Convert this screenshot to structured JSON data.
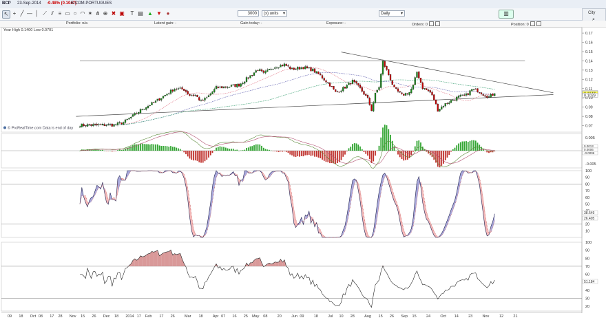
{
  "header": {
    "ticker": "BCP",
    "date": "23-Sep-2014",
    "change": "-0.48% (0.1047)",
    "name": "B.COM.PORTUGUES"
  },
  "toolbar": {
    "quantity": "3000",
    "units_select": "(x) units",
    "period_select": "Daily",
    "side_label": "City"
  },
  "positionbar": {
    "portfolio": "Portfolio: n/a",
    "latent_gain": "Latent gain: -",
    "gain_today": "Gain today: -",
    "exposure": "Exposure: -",
    "orders": "Orders: 0",
    "position": "Position: 0"
  },
  "colors": {
    "up": "#1c8a1c",
    "down": "#c40000",
    "macd_pos": "#31a531",
    "macd_neg": "#c0342f",
    "stoch_fill_up": "#8c8cd0",
    "stoch_fill_down": "#f0a0a0",
    "price_marker": "#ffff40"
  },
  "chart_data": [
    {
      "type": "candlestick",
      "id": "price",
      "annotation": "Year High 0.1400 Low 0.0701",
      "watermark": "© ProRealTime.com  Data is end of day",
      "ylim": [
        0.063,
        0.176
      ],
      "yticks": [
        0.07,
        0.08,
        0.09,
        0.1,
        0.11,
        0.12,
        0.13,
        0.14,
        0.15,
        0.16,
        0.17
      ],
      "price_labels": [
        {
          "label": "0.1057",
          "value": 0.1057,
          "highlight": false
        },
        {
          "label": "0.1047",
          "value": 0.1047,
          "highlight": true
        },
        {
          "label": "0.1029",
          "value": 0.1029,
          "highlight": false
        }
      ],
      "close_anchors": [
        {
          "x": 0,
          "y": 0.0705
        },
        {
          "x": 18,
          "y": 0.0708
        },
        {
          "x": 23,
          "y": 0.0735
        },
        {
          "x": 27,
          "y": 0.079
        },
        {
          "x": 33,
          "y": 0.088
        },
        {
          "x": 40,
          "y": 0.096
        },
        {
          "x": 45,
          "y": 0.103
        },
        {
          "x": 50,
          "y": 0.11
        },
        {
          "x": 55,
          "y": 0.109
        },
        {
          "x": 58,
          "y": 0.103
        },
        {
          "x": 61,
          "y": 0.103
        },
        {
          "x": 64,
          "y": 0.096
        },
        {
          "x": 67,
          "y": 0.1
        },
        {
          "x": 72,
          "y": 0.111
        },
        {
          "x": 78,
          "y": 0.112
        },
        {
          "x": 84,
          "y": 0.114
        },
        {
          "x": 89,
          "y": 0.122
        },
        {
          "x": 94,
          "y": 0.131
        },
        {
          "x": 97,
          "y": 0.126
        },
        {
          "x": 102,
          "y": 0.133
        },
        {
          "x": 108,
          "y": 0.136
        },
        {
          "x": 112,
          "y": 0.131
        },
        {
          "x": 118,
          "y": 0.133
        },
        {
          "x": 123,
          "y": 0.13
        },
        {
          "x": 127,
          "y": 0.124
        },
        {
          "x": 132,
          "y": 0.114
        },
        {
          "x": 135,
          "y": 0.106
        },
        {
          "x": 139,
          "y": 0.11
        },
        {
          "x": 144,
          "y": 0.118
        },
        {
          "x": 148,
          "y": 0.11
        },
        {
          "x": 152,
          "y": 0.099
        },
        {
          "x": 154,
          "y": 0.087
        },
        {
          "x": 156,
          "y": 0.104
        },
        {
          "x": 158,
          "y": 0.112
        },
        {
          "x": 160,
          "y": 0.139
        },
        {
          "x": 163,
          "y": 0.125
        },
        {
          "x": 166,
          "y": 0.11
        },
        {
          "x": 170,
          "y": 0.103
        },
        {
          "x": 174,
          "y": 0.106
        },
        {
          "x": 176,
          "y": 0.113
        },
        {
          "x": 178,
          "y": 0.128
        },
        {
          "x": 181,
          "y": 0.111
        },
        {
          "x": 185,
          "y": 0.106
        },
        {
          "x": 187,
          "y": 0.098
        },
        {
          "x": 189,
          "y": 0.087
        },
        {
          "x": 192,
          "y": 0.092
        },
        {
          "x": 196,
          "y": 0.097
        },
        {
          "x": 200,
          "y": 0.101
        },
        {
          "x": 204,
          "y": 0.103
        },
        {
          "x": 207,
          "y": 0.109
        },
        {
          "x": 210,
          "y": 0.108
        },
        {
          "x": 213,
          "y": 0.104
        },
        {
          "x": 216,
          "y": 0.101
        },
        {
          "x": 219,
          "y": 0.1047
        }
      ],
      "moving_averages": [
        {
          "color": "#e07080",
          "period": 20
        },
        {
          "color": "#6060b0",
          "period": 50
        },
        {
          "color": "#2f9a6a",
          "period": 100
        }
      ],
      "trendlines": [
        {
          "points": [
            [
              0,
              0.14
            ],
            [
              235,
              0.14
            ]
          ],
          "color": "#555"
        },
        {
          "points": [
            [
              -2,
              0.08
            ],
            [
              250,
              0.1035
            ]
          ],
          "color": "#444"
        },
        {
          "points": [
            [
              138,
              0.1495
            ],
            [
              250,
              0.1055
            ]
          ],
          "color": "#444"
        }
      ]
    },
    {
      "type": "histogram",
      "id": "macd",
      "ylim": [
        -0.0065,
        0.0065
      ],
      "yticks": [
        {
          "label": "0.005",
          "value": 0.005
        },
        {
          "label": "-0.005",
          "value": -0.005
        }
      ],
      "value_labels": [
        "0.0013",
        "0.0006",
        "-0.0006"
      ]
    },
    {
      "type": "line",
      "id": "stochastic",
      "ylim": [
        0,
        100
      ],
      "yticks": [
        10,
        20,
        30,
        40,
        50,
        60,
        70,
        80,
        90,
        100
      ],
      "levels": [
        20,
        80
      ],
      "value_labels": [
        "38.549",
        "26.405"
      ]
    },
    {
      "type": "line",
      "id": "rsi",
      "ylim": [
        14,
        100
      ],
      "yticks": [
        20,
        30,
        40,
        50,
        60,
        70,
        80,
        90,
        100
      ],
      "levels": [
        30,
        70
      ],
      "value_labels": [
        "51.184"
      ]
    }
  ],
  "x_axis": {
    "labels": [
      {
        "i": -26,
        "t": "09"
      },
      {
        "i": -22,
        "t": "18"
      },
      {
        "i": -18,
        "t": "Oct"
      },
      {
        "i": -15,
        "t": "08"
      },
      {
        "i": -11,
        "t": "17"
      },
      {
        "i": -8,
        "t": "28"
      },
      {
        "i": -4,
        "t": "Nov"
      },
      {
        "i": 0,
        "t": "15"
      },
      {
        "i": 4,
        "t": "26"
      },
      {
        "i": 8,
        "t": "Dec"
      },
      {
        "i": 12,
        "t": "18"
      },
      {
        "i": 16,
        "t": "2014"
      },
      {
        "i": 20,
        "t": "17"
      },
      {
        "i": 23,
        "t": "Feb"
      },
      {
        "i": 28,
        "t": "17"
      },
      {
        "i": 32,
        "t": "26"
      },
      {
        "i": 37,
        "t": "Mar"
      },
      {
        "i": 42,
        "t": "18"
      },
      {
        "i": 47,
        "t": "Apr"
      },
      {
        "i": 50,
        "t": "07"
      },
      {
        "i": 54,
        "t": "16"
      },
      {
        "i": 58,
        "t": "25"
      },
      {
        "i": 61,
        "t": "May"
      },
      {
        "i": 65,
        "t": "08"
      },
      {
        "i": 70,
        "t": "20"
      },
      {
        "i": 75,
        "t": "Jun"
      },
      {
        "i": 78,
        "t": "09"
      },
      {
        "i": 83,
        "t": "18"
      },
      {
        "i": 88,
        "t": "Jul"
      },
      {
        "i": 92,
        "t": "10"
      },
      {
        "i": 96,
        "t": "28"
      },
      {
        "i": 101,
        "t": "Aug"
      },
      {
        "i": 106,
        "t": "15"
      },
      {
        "i": 110,
        "t": "26"
      },
      {
        "i": 114,
        "t": "Sep"
      },
      {
        "i": 118,
        "t": "15"
      },
      {
        "i": 123,
        "t": "24"
      },
      {
        "i": 128,
        "t": "Oct"
      },
      {
        "i": 133,
        "t": "14"
      },
      {
        "i": 138,
        "t": "23"
      },
      {
        "i": 143,
        "t": "Nov"
      },
      {
        "i": 149,
        "t": "12"
      },
      {
        "i": 154,
        "t": "21"
      }
    ]
  }
}
